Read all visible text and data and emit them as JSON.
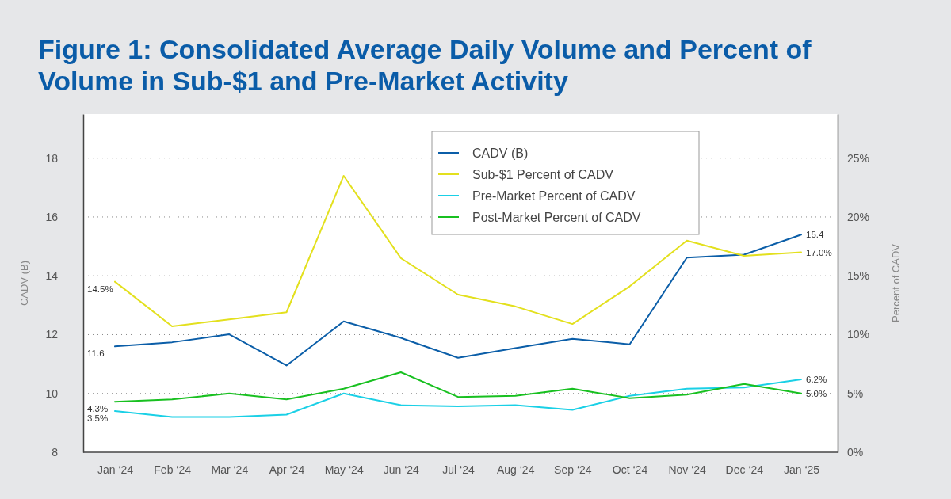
{
  "chart_data": {
    "type": "line",
    "title": "Figure 1: Consolidated Average Daily Volume and Percent of Volume in Sub-$1 and Pre-Market Activity",
    "ylabel": "CADV (B)",
    "y2label": "Percent of CADV",
    "categories": [
      "Jan ‘24",
      "Feb ‘24",
      "Mar ‘24",
      "Apr ‘24",
      "May ‘24",
      "Jun ‘24",
      "Jul ‘24",
      "Aug ‘24",
      "Sep ‘24",
      "Oct ‘24",
      "Nov ‘24",
      "Dec ‘24",
      "Jan ‘25"
    ],
    "series": [
      {
        "name": "CADV (B)",
        "color": "#0b5ea8",
        "values": [
          11.6,
          11.74,
          12.01,
          10.95,
          12.45,
          11.89,
          11.21,
          11.54,
          11.86,
          11.67,
          14.62,
          14.72,
          15.4
        ],
        "value_labels": [
          "11.6",
          null,
          null,
          null,
          null,
          null,
          null,
          null,
          null,
          null,
          null,
          null,
          "15.4"
        ]
      },
      {
        "name": "Sub-$1 Percent of CADV",
        "color": "#e3e01e",
        "axis": "y2",
        "values": [
          14.5,
          10.7,
          11.3,
          11.9,
          23.5,
          16.5,
          13.4,
          12.4,
          10.9,
          14.1,
          18.0,
          16.7,
          17.0
        ],
        "value_labels": [
          "14.5%",
          null,
          null,
          null,
          null,
          null,
          null,
          null,
          null,
          null,
          null,
          null,
          "17.0%"
        ]
      },
      {
        "name": "Pre-Market Percent of CADV",
        "color": "#1ad0e6",
        "axis": "y2",
        "values": [
          3.5,
          3.0,
          3.0,
          3.2,
          5.0,
          4.0,
          3.9,
          4.0,
          3.6,
          4.8,
          5.4,
          5.5,
          6.2
        ],
        "value_labels": [
          "3.5%",
          null,
          null,
          null,
          null,
          null,
          null,
          null,
          null,
          null,
          null,
          null,
          "6.2%"
        ]
      },
      {
        "name": "Post-Market Percent of CADV",
        "color": "#18c020",
        "axis": "y2",
        "values": [
          4.3,
          4.5,
          5.0,
          4.5,
          5.4,
          6.8,
          4.7,
          4.8,
          5.4,
          4.6,
          4.9,
          5.8,
          5.0
        ],
        "value_labels": [
          "4.3%",
          null,
          null,
          null,
          null,
          null,
          null,
          null,
          null,
          null,
          null,
          null,
          "5.0%"
        ]
      }
    ],
    "ylim": [
      8,
      19.5
    ],
    "yticks": [
      8,
      10,
      12,
      14,
      16,
      18
    ],
    "y2lim": [
      0,
      28.75
    ],
    "y2ticks": [
      {
        "value": 0,
        "label": "0%"
      },
      {
        "value": 5,
        "label": "5%"
      },
      {
        "value": 10,
        "label": "10%"
      },
      {
        "value": 15,
        "label": "15%"
      },
      {
        "value": 20,
        "label": "20%"
      },
      {
        "value": 25,
        "label": "25%"
      }
    ],
    "grid": "y",
    "legend": "top",
    "marker": "none",
    "line_style": "solid"
  }
}
